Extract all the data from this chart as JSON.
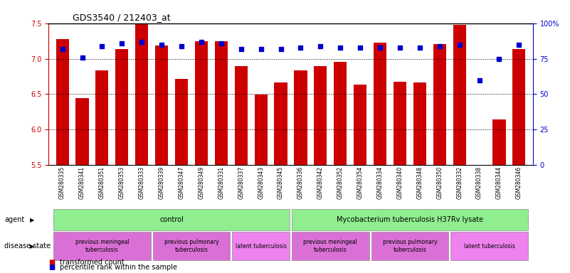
{
  "title": "GDS3540 / 212403_at",
  "samples": [
    "GSM280335",
    "GSM280341",
    "GSM280351",
    "GSM280353",
    "GSM280333",
    "GSM280339",
    "GSM280347",
    "GSM280349",
    "GSM280331",
    "GSM280337",
    "GSM280343",
    "GSM280345",
    "GSM280336",
    "GSM280342",
    "GSM280352",
    "GSM280354",
    "GSM280334",
    "GSM280340",
    "GSM280348",
    "GSM280350",
    "GSM280332",
    "GSM280338",
    "GSM280344",
    "GSM280346"
  ],
  "bar_values": [
    7.28,
    6.44,
    6.84,
    7.14,
    7.49,
    7.19,
    6.72,
    7.25,
    7.25,
    6.9,
    6.49,
    6.67,
    6.84,
    6.9,
    6.96,
    6.64,
    7.23,
    6.68,
    6.67,
    7.21,
    7.48,
    5.5,
    6.14,
    7.14
  ],
  "percentile_values": [
    82,
    76,
    84,
    86,
    87,
    85,
    84,
    87,
    86,
    82,
    82,
    82,
    83,
    84,
    83,
    83,
    83,
    83,
    83,
    84,
    85,
    60,
    75,
    85
  ],
  "ylim_left": [
    5.5,
    7.5
  ],
  "ylim_right": [
    0,
    100
  ],
  "yticks_left": [
    5.5,
    6.0,
    6.5,
    7.0,
    7.5
  ],
  "ytick_labels_right": [
    "0",
    "25",
    "50",
    "75",
    "100%"
  ],
  "yticks_right": [
    0,
    25,
    50,
    75,
    100
  ],
  "bar_color": "#cc0000",
  "dot_color": "#0000cc",
  "agent_groups": [
    {
      "label": "control",
      "start": 0,
      "end": 11,
      "color": "#90EE90"
    },
    {
      "label": "Mycobacterium tuberculosis H37Rv lysate",
      "start": 12,
      "end": 23,
      "color": "#90EE90"
    }
  ],
  "disease_groups": [
    {
      "label": "previous meningeal\ntuberculosis",
      "start": 0,
      "end": 4,
      "color": "#DA70D6"
    },
    {
      "label": "previous pulmonary\ntuberculosis",
      "start": 5,
      "end": 8,
      "color": "#DA70D6"
    },
    {
      "label": "latent tuberculosis",
      "start": 9,
      "end": 11,
      "color": "#EE82EE"
    },
    {
      "label": "previous meningeal\ntuberculosis",
      "start": 12,
      "end": 15,
      "color": "#DA70D6"
    },
    {
      "label": "previous pulmonary\ntuberculosis",
      "start": 16,
      "end": 19,
      "color": "#DA70D6"
    },
    {
      "label": "latent tuberculosis",
      "start": 20,
      "end": 23,
      "color": "#EE82EE"
    }
  ],
  "legend_items": [
    {
      "label": "transformed count",
      "color": "#cc0000"
    },
    {
      "label": "percentile rank within the sample",
      "color": "#0000cc"
    }
  ]
}
